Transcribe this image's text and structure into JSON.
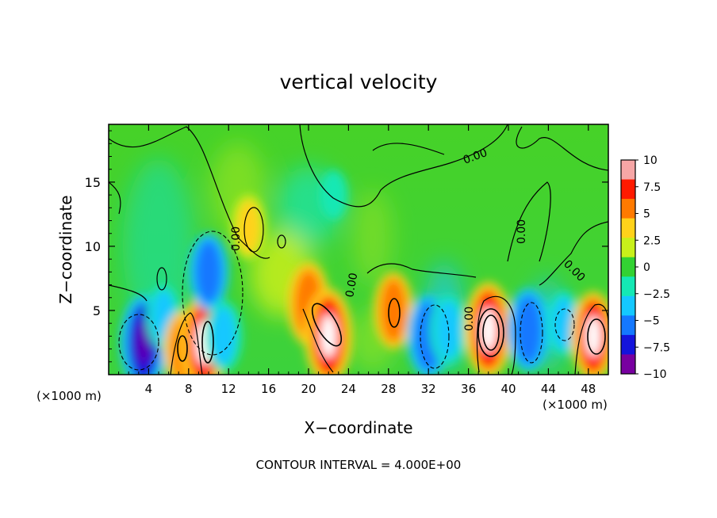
{
  "chart_data": {
    "type": "heatmap",
    "title": "vertical velocity",
    "xlabel": "X−coordinate",
    "ylabel": "Z−coordinate",
    "x_unit_label_left": "(×1000 m)",
    "x_unit_label_right": "(×1000 m)",
    "footer": "CONTOUR INTERVAL = 4.000E+00",
    "xlim": [
      0,
      50
    ],
    "ylim": [
      0,
      19.5
    ],
    "xticks": [
      4,
      8,
      12,
      16,
      20,
      24,
      28,
      32,
      36,
      40,
      44,
      48
    ],
    "yticks": [
      5,
      10,
      15
    ],
    "colorbar": {
      "range": [
        -10,
        10
      ],
      "labels": [
        "10",
        "7.5",
        "5",
        "2.5",
        "0",
        "−2.5",
        "−5",
        "−7.5",
        "−10"
      ],
      "colors": [
        "#f6a6a6",
        "#ff1a00",
        "#ff7a00",
        "#ffd21a",
        "#c8f01a",
        "#32d232",
        "#14e8b4",
        "#14c8ff",
        "#1478ff",
        "#1414dc",
        "#7800a0"
      ]
    },
    "contour_labels": [
      "0.00",
      "0.00",
      "0.00",
      "0.00",
      "0.00",
      "0.00",
      "0.00"
    ],
    "cells": [
      {
        "x": 3.5,
        "z": 2.5,
        "w": -10
      },
      {
        "x": 5.5,
        "z": 4.5,
        "w": -5
      },
      {
        "x": 7.5,
        "z": 2.0,
        "w": 7
      },
      {
        "x": 9.5,
        "z": 2.5,
        "w": 10
      },
      {
        "x": 10.0,
        "z": 8.0,
        "w": -7
      },
      {
        "x": 11.5,
        "z": 3.0,
        "w": -6
      },
      {
        "x": 14.0,
        "z": 11.5,
        "w": 5
      },
      {
        "x": 20.0,
        "z": 5.5,
        "w": 8
      },
      {
        "x": 22.0,
        "z": 3.0,
        "w": 10
      },
      {
        "x": 22.5,
        "z": 14.0,
        "w": -2.5
      },
      {
        "x": 28.5,
        "z": 5.0,
        "w": 7
      },
      {
        "x": 32.0,
        "z": 3.0,
        "w": -8
      },
      {
        "x": 34.0,
        "z": 3.5,
        "w": -6
      },
      {
        "x": 38.0,
        "z": 3.5,
        "w": 10
      },
      {
        "x": 42.0,
        "z": 3.5,
        "w": -8
      },
      {
        "x": 45.5,
        "z": 4.0,
        "w": -5
      },
      {
        "x": 48.5,
        "z": 3.0,
        "w": 9
      }
    ]
  }
}
